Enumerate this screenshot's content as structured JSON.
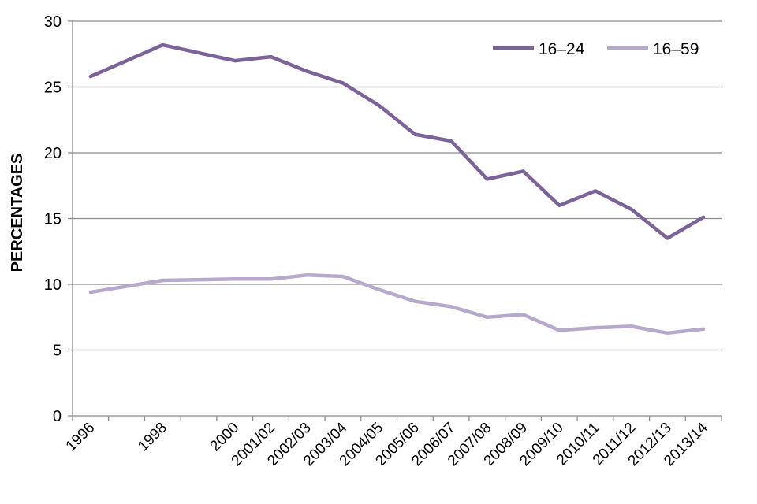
{
  "chart_data": {
    "type": "line",
    "title": "",
    "xlabel": "",
    "ylabel": "PERCENTAGES",
    "ylim": [
      0,
      30
    ],
    "yticks": [
      "0",
      "5",
      "10",
      "15",
      "20",
      "25",
      "30"
    ],
    "grid": true,
    "legend_position": "top-right",
    "categories": [
      "1996",
      "",
      "1998",
      "",
      "2000",
      "2001/02",
      "2002/03",
      "2003/04",
      "2004/05",
      "2005/06",
      "2006/07",
      "2007/08",
      "2008/09",
      "2009/10",
      "2010/11",
      "2011/12",
      "2012/13",
      "2013/14"
    ],
    "category_labels": [
      "1996",
      "1998",
      "2000",
      "2001/02",
      "2002/03",
      "2003/04",
      "2004/05",
      "2005/06",
      "2006/07",
      "2007/08",
      "2008/09",
      "2009/10",
      "2010/11",
      "2011/12",
      "2012/13",
      "2013/14"
    ],
    "series": [
      {
        "name": "16–24",
        "color": "#7b6399",
        "values": [
          25.8,
          null,
          28.2,
          null,
          27.0,
          27.3,
          26.2,
          25.3,
          23.6,
          21.4,
          20.9,
          18.0,
          18.6,
          16.0,
          17.1,
          15.7,
          13.5,
          15.1
        ]
      },
      {
        "name": "16–59",
        "color": "#b7a9cc",
        "values": [
          9.4,
          null,
          10.3,
          null,
          10.4,
          10.4,
          10.7,
          10.6,
          9.6,
          8.7,
          8.3,
          7.5,
          7.7,
          6.5,
          6.7,
          6.8,
          6.3,
          6.6
        ]
      }
    ]
  }
}
